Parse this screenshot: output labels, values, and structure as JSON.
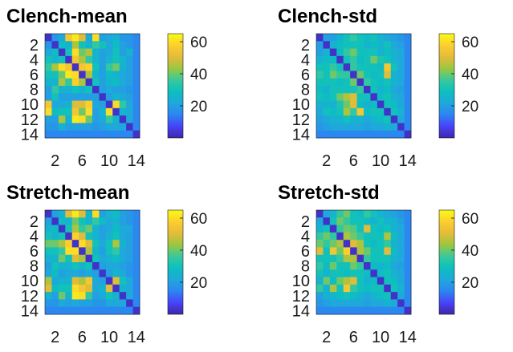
{
  "figure": {
    "colormap": [
      "#3e26a8",
      "#4743f8",
      "#2c85f2",
      "#1fa8db",
      "#0cbfc1",
      "#39c99a",
      "#9bc73f",
      "#e5bb3a",
      "#fcce2e",
      "#f9fb15"
    ],
    "tick_color": "#1a1a1a"
  },
  "chart_data": [
    {
      "type": "heatmap",
      "title": "Clench-mean",
      "size": 14,
      "xticks": [
        2,
        6,
        10,
        14
      ],
      "yticks": [
        2,
        4,
        6,
        8,
        10,
        12,
        14
      ],
      "colorbar": {
        "ticks": [
          20,
          40,
          60
        ],
        "range": [
          0,
          65
        ]
      },
      "matrix": [
        [
          3,
          18,
          22,
          55,
          62,
          50,
          22,
          60,
          20,
          22,
          25,
          18,
          18,
          15
        ],
        [
          18,
          3,
          28,
          25,
          45,
          30,
          25,
          35,
          30,
          22,
          28,
          20,
          18,
          15
        ],
        [
          22,
          28,
          3,
          30,
          60,
          40,
          45,
          25,
          20,
          22,
          30,
          20,
          25,
          15
        ],
        [
          30,
          25,
          30,
          3,
          55,
          45,
          35,
          25,
          20,
          25,
          30,
          25,
          20,
          15
        ],
        [
          35,
          45,
          60,
          55,
          3,
          55,
          58,
          30,
          20,
          35,
          40,
          25,
          20,
          15
        ],
        [
          30,
          30,
          40,
          62,
          60,
          3,
          45,
          25,
          20,
          28,
          25,
          22,
          20,
          15
        ],
        [
          25,
          25,
          45,
          35,
          58,
          45,
          3,
          30,
          20,
          25,
          28,
          22,
          20,
          15
        ],
        [
          20,
          35,
          25,
          25,
          30,
          25,
          30,
          3,
          20,
          22,
          20,
          20,
          18,
          15
        ],
        [
          20,
          30,
          20,
          20,
          20,
          20,
          20,
          20,
          3,
          20,
          25,
          22,
          20,
          15
        ],
        [
          55,
          22,
          22,
          25,
          50,
          50,
          58,
          22,
          20,
          3,
          60,
          35,
          22,
          15
        ],
        [
          60,
          28,
          30,
          30,
          55,
          40,
          60,
          20,
          25,
          60,
          3,
          25,
          22,
          15
        ],
        [
          20,
          20,
          45,
          25,
          62,
          60,
          40,
          20,
          22,
          35,
          25,
          3,
          22,
          15
        ],
        [
          18,
          18,
          25,
          20,
          20,
          20,
          20,
          18,
          20,
          22,
          22,
          22,
          3,
          15
        ],
        [
          15,
          15,
          15,
          15,
          15,
          15,
          15,
          15,
          15,
          15,
          15,
          15,
          15,
          3
        ]
      ]
    },
    {
      "type": "heatmap",
      "title": "Clench-std",
      "size": 14,
      "xticks": [
        2,
        6,
        10,
        14
      ],
      "yticks": [
        2,
        4,
        6,
        8,
        10,
        12,
        14
      ],
      "colorbar": {
        "ticks": [
          20,
          40,
          60
        ],
        "range": [
          0,
          65
        ]
      },
      "matrix": [
        [
          3,
          20,
          20,
          25,
          30,
          35,
          30,
          28,
          30,
          25,
          22,
          20,
          18,
          15
        ],
        [
          20,
          3,
          25,
          28,
          30,
          30,
          30,
          25,
          28,
          25,
          30,
          22,
          20,
          15
        ],
        [
          20,
          25,
          3,
          28,
          35,
          40,
          30,
          30,
          30,
          25,
          28,
          25,
          22,
          15
        ],
        [
          25,
          28,
          28,
          3,
          30,
          35,
          28,
          30,
          40,
          32,
          30,
          25,
          22,
          15
        ],
        [
          30,
          30,
          35,
          30,
          3,
          35,
          30,
          30,
          30,
          28,
          55,
          30,
          22,
          15
        ],
        [
          35,
          30,
          40,
          35,
          35,
          3,
          40,
          30,
          28,
          30,
          50,
          25,
          22,
          15
        ],
        [
          30,
          30,
          30,
          28,
          30,
          40,
          3,
          35,
          30,
          28,
          30,
          25,
          22,
          15
        ],
        [
          28,
          25,
          30,
          30,
          30,
          30,
          35,
          3,
          30,
          25,
          28,
          22,
          20,
          15
        ],
        [
          30,
          28,
          30,
          40,
          45,
          50,
          30,
          30,
          3,
          28,
          30,
          25,
          22,
          15
        ],
        [
          25,
          25,
          25,
          32,
          40,
          50,
          28,
          25,
          28,
          3,
          30,
          28,
          22,
          15
        ],
        [
          22,
          30,
          28,
          30,
          45,
          35,
          55,
          28,
          30,
          30,
          3,
          30,
          25,
          15
        ],
        [
          20,
          22,
          25,
          25,
          30,
          25,
          25,
          22,
          25,
          28,
          30,
          3,
          22,
          15
        ],
        [
          18,
          20,
          22,
          22,
          22,
          22,
          22,
          20,
          22,
          22,
          25,
          22,
          3,
          15
        ],
        [
          15,
          15,
          15,
          15,
          15,
          15,
          15,
          15,
          15,
          15,
          15,
          15,
          15,
          3
        ]
      ]
    },
    {
      "type": "heatmap",
      "title": "Stretch-mean",
      "size": 14,
      "xticks": [
        2,
        6,
        10,
        14
      ],
      "yticks": [
        2,
        4,
        6,
        8,
        10,
        12,
        14
      ],
      "colorbar": {
        "ticks": [
          20,
          40,
          60
        ],
        "range": [
          0,
          65
        ]
      },
      "matrix": [
        [
          3,
          20,
          25,
          50,
          62,
          50,
          25,
          60,
          20,
          25,
          28,
          20,
          18,
          15
        ],
        [
          20,
          3,
          28,
          25,
          40,
          30,
          25,
          35,
          28,
          22,
          25,
          20,
          18,
          15
        ],
        [
          25,
          28,
          3,
          30,
          45,
          35,
          40,
          25,
          20,
          22,
          28,
          22,
          22,
          15
        ],
        [
          30,
          25,
          30,
          3,
          58,
          50,
          30,
          25,
          20,
          25,
          30,
          22,
          20,
          15
        ],
        [
          40,
          40,
          45,
          58,
          3,
          60,
          50,
          30,
          22,
          30,
          45,
          25,
          20,
          15
        ],
        [
          30,
          30,
          35,
          60,
          60,
          3,
          45,
          25,
          20,
          30,
          35,
          22,
          20,
          15
        ],
        [
          25,
          25,
          40,
          30,
          50,
          45,
          3,
          30,
          22,
          25,
          28,
          22,
          20,
          15
        ],
        [
          20,
          30,
          25,
          25,
          30,
          25,
          30,
          3,
          20,
          22,
          22,
          20,
          18,
          15
        ],
        [
          22,
          28,
          20,
          22,
          22,
          20,
          22,
          20,
          3,
          20,
          25,
          22,
          18,
          15
        ],
        [
          45,
          22,
          25,
          25,
          50,
          45,
          55,
          22,
          20,
          3,
          50,
          30,
          22,
          15
        ],
        [
          50,
          28,
          30,
          30,
          60,
          55,
          50,
          22,
          25,
          50,
          3,
          25,
          22,
          15
        ],
        [
          25,
          20,
          40,
          25,
          62,
          60,
          35,
          20,
          22,
          30,
          25,
          3,
          22,
          15
        ],
        [
          18,
          18,
          22,
          20,
          22,
          20,
          20,
          18,
          18,
          22,
          22,
          22,
          3,
          15
        ],
        [
          15,
          15,
          15,
          15,
          15,
          15,
          15,
          15,
          15,
          15,
          15,
          15,
          15,
          3
        ]
      ]
    },
    {
      "type": "heatmap",
      "title": "Stretch-std",
      "size": 14,
      "xticks": [
        2,
        6,
        10,
        14
      ],
      "yticks": [
        2,
        4,
        6,
        8,
        10,
        12,
        14
      ],
      "colorbar": {
        "ticks": [
          20,
          40,
          60
        ],
        "range": [
          0,
          65
        ]
      },
      "matrix": [
        [
          3,
          22,
          25,
          35,
          40,
          30,
          28,
          35,
          30,
          25,
          22,
          20,
          18,
          15
        ],
        [
          22,
          3,
          30,
          40,
          35,
          30,
          30,
          28,
          25,
          30,
          25,
          25,
          20,
          15
        ],
        [
          25,
          30,
          3,
          35,
          40,
          38,
          30,
          50,
          30,
          28,
          30,
          25,
          22,
          15
        ],
        [
          35,
          40,
          35,
          3,
          45,
          40,
          35,
          30,
          30,
          30,
          45,
          28,
          22,
          15
        ],
        [
          40,
          35,
          40,
          45,
          3,
          50,
          45,
          30,
          28,
          30,
          35,
          25,
          22,
          15
        ],
        [
          50,
          30,
          55,
          40,
          58,
          3,
          45,
          40,
          30,
          30,
          50,
          28,
          22,
          15
        ],
        [
          30,
          30,
          30,
          35,
          45,
          45,
          3,
          35,
          30,
          30,
          30,
          25,
          22,
          15
        ],
        [
          35,
          28,
          40,
          30,
          30,
          40,
          35,
          3,
          28,
          25,
          28,
          22,
          20,
          15
        ],
        [
          30,
          25,
          30,
          30,
          28,
          30,
          30,
          28,
          3,
          28,
          30,
          25,
          22,
          15
        ],
        [
          25,
          40,
          28,
          40,
          45,
          50,
          30,
          25,
          28,
          3,
          30,
          28,
          22,
          15
        ],
        [
          35,
          25,
          45,
          30,
          55,
          35,
          30,
          28,
          30,
          30,
          3,
          30,
          25,
          15
        ],
        [
          20,
          25,
          25,
          28,
          30,
          28,
          25,
          22,
          25,
          28,
          30,
          3,
          22,
          15
        ],
        [
          18,
          20,
          22,
          22,
          22,
          22,
          22,
          20,
          22,
          22,
          25,
          22,
          3,
          15
        ],
        [
          15,
          15,
          15,
          15,
          15,
          15,
          15,
          15,
          15,
          15,
          15,
          15,
          15,
          3
        ]
      ]
    }
  ]
}
